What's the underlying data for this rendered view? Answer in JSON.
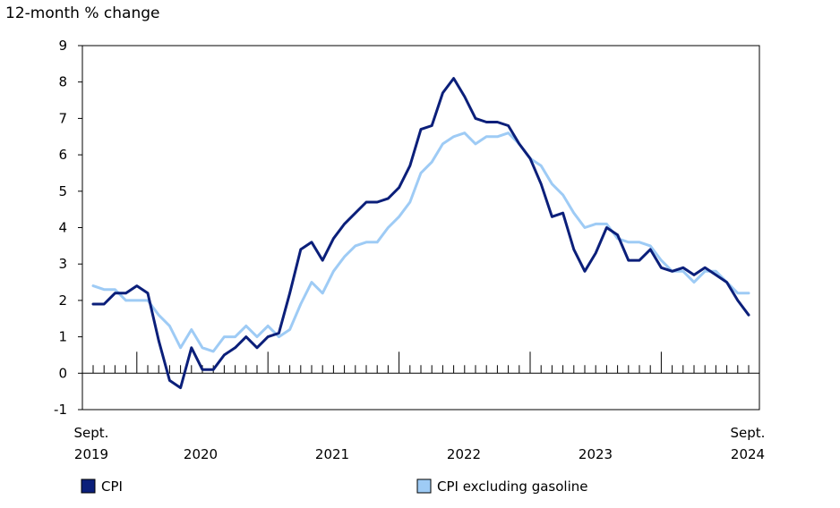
{
  "chart_data": {
    "type": "line",
    "ylabel": "12-month % change",
    "ylim": [
      -1,
      9
    ],
    "yticks": [
      "-1",
      "0",
      "1",
      "2",
      "3",
      "4",
      "5",
      "6",
      "7",
      "8",
      "9"
    ],
    "x_start": "Sept. 2019",
    "x_end": "Sept. 2024",
    "x_labels": {
      "start_month": "Sept.",
      "start_year": "2019",
      "years": [
        "2020",
        "2021",
        "2022",
        "2023"
      ],
      "end_month": "Sept.",
      "end_year": "2024"
    },
    "grid": false,
    "legend_position": "bottom",
    "series": [
      {
        "name": "CPI",
        "color": "#0b1f7a",
        "values": [
          1.9,
          1.9,
          2.2,
          2.2,
          2.4,
          2.2,
          0.9,
          -0.2,
          -0.4,
          0.7,
          0.1,
          0.1,
          0.5,
          0.7,
          1.0,
          0.7,
          1.0,
          1.1,
          2.2,
          3.4,
          3.6,
          3.1,
          3.7,
          4.1,
          4.4,
          4.7,
          4.7,
          4.8,
          5.1,
          5.7,
          6.7,
          6.8,
          7.7,
          8.1,
          7.6,
          7.0,
          6.9,
          6.9,
          6.8,
          6.3,
          5.9,
          5.2,
          4.3,
          4.4,
          3.4,
          2.8,
          3.3,
          4.0,
          3.8,
          3.1,
          3.1,
          3.4,
          2.9,
          2.8,
          2.9,
          2.7,
          2.9,
          2.7,
          2.5,
          2.0,
          1.6
        ]
      },
      {
        "name": "CPI excluding gasoline",
        "color": "#9ecbf5",
        "values": [
          2.4,
          2.3,
          2.3,
          2.0,
          2.0,
          2.0,
          1.6,
          1.3,
          0.7,
          1.2,
          0.7,
          0.6,
          1.0,
          1.0,
          1.3,
          1.0,
          1.3,
          1.0,
          1.2,
          1.9,
          2.5,
          2.2,
          2.8,
          3.2,
          3.5,
          3.6,
          3.6,
          4.0,
          4.3,
          4.7,
          5.5,
          5.8,
          6.3,
          6.5,
          6.6,
          6.3,
          6.5,
          6.5,
          6.6,
          6.3,
          5.9,
          5.7,
          5.2,
          4.9,
          4.4,
          4.0,
          4.1,
          4.1,
          3.7,
          3.6,
          3.6,
          3.5,
          3.1,
          2.8,
          2.8,
          2.5,
          2.8,
          2.8,
          2.5,
          2.2,
          2.2
        ]
      }
    ]
  }
}
